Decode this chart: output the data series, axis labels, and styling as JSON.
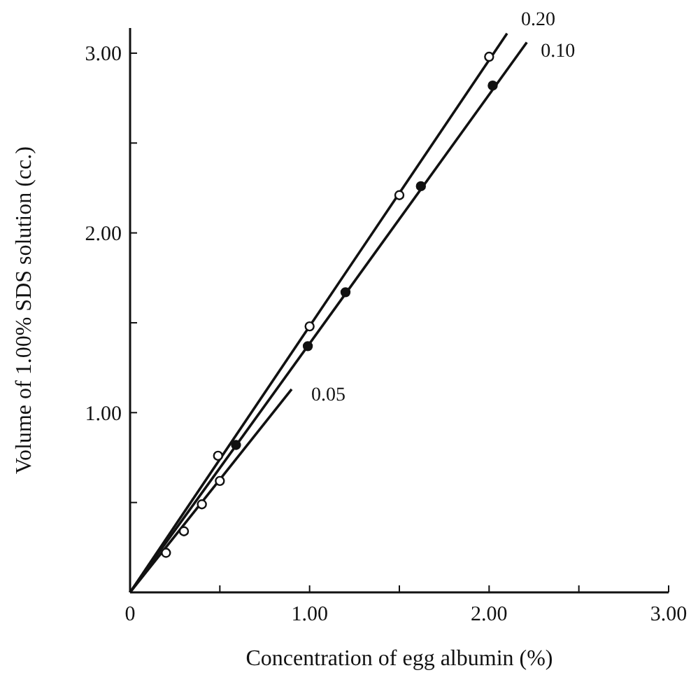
{
  "chart_data": {
    "type": "line",
    "xlabel": "Concentration of egg albumin (%)",
    "ylabel": "Volume of 1.00% SDS solution (cc.)",
    "xlim": [
      0,
      3
    ],
    "ylim": [
      0,
      3.14
    ],
    "xticks": [
      {
        "value": 0,
        "label": "0"
      },
      {
        "value": 0.5,
        "label": null
      },
      {
        "value": 1,
        "label": "1.00"
      },
      {
        "value": 1.5,
        "label": null
      },
      {
        "value": 2,
        "label": "2.00"
      },
      {
        "value": 2.5,
        "label": null
      },
      {
        "value": 3,
        "label": "3.00"
      }
    ],
    "yticks": [
      {
        "value": 0.5,
        "label": null
      },
      {
        "value": 1,
        "label": "1.00"
      },
      {
        "value": 1.5,
        "label": null
      },
      {
        "value": 2,
        "label": "2.00"
      },
      {
        "value": 2.5,
        "label": null
      },
      {
        "value": 3,
        "label": "3.00"
      }
    ],
    "grid": false,
    "line_style": "solid",
    "series": [
      {
        "name": "0.20",
        "color": "#111111",
        "x": [
          0,
          2.1
        ],
        "values": [
          0,
          3.11
        ]
      },
      {
        "name": "0.10",
        "color": "#111111",
        "x": [
          0,
          2.21
        ],
        "values": [
          0,
          3.06
        ]
      },
      {
        "name": "0.05",
        "color": "#111111",
        "x": [
          0,
          0.9
        ],
        "values": [
          0,
          1.13
        ]
      },
      {
        "type": "scatter",
        "color": "#ffffff",
        "marker": "circle",
        "x": [
          0.49,
          1.0,
          1.5,
          2.0
        ],
        "values": [
          0.76,
          1.48,
          2.21,
          2.98
        ]
      },
      {
        "type": "scatter",
        "color": "#111111",
        "marker": "circle",
        "x": [
          0.59,
          0.99,
          1.2,
          1.62,
          2.02
        ],
        "values": [
          0.82,
          1.37,
          1.67,
          2.26,
          2.82
        ]
      },
      {
        "type": "scatter",
        "color": "#ffffff",
        "marker": "circle",
        "x": [
          0.2,
          0.3,
          0.4,
          0.5
        ],
        "values": [
          0.22,
          0.34,
          0.49,
          0.62
        ]
      }
    ]
  }
}
